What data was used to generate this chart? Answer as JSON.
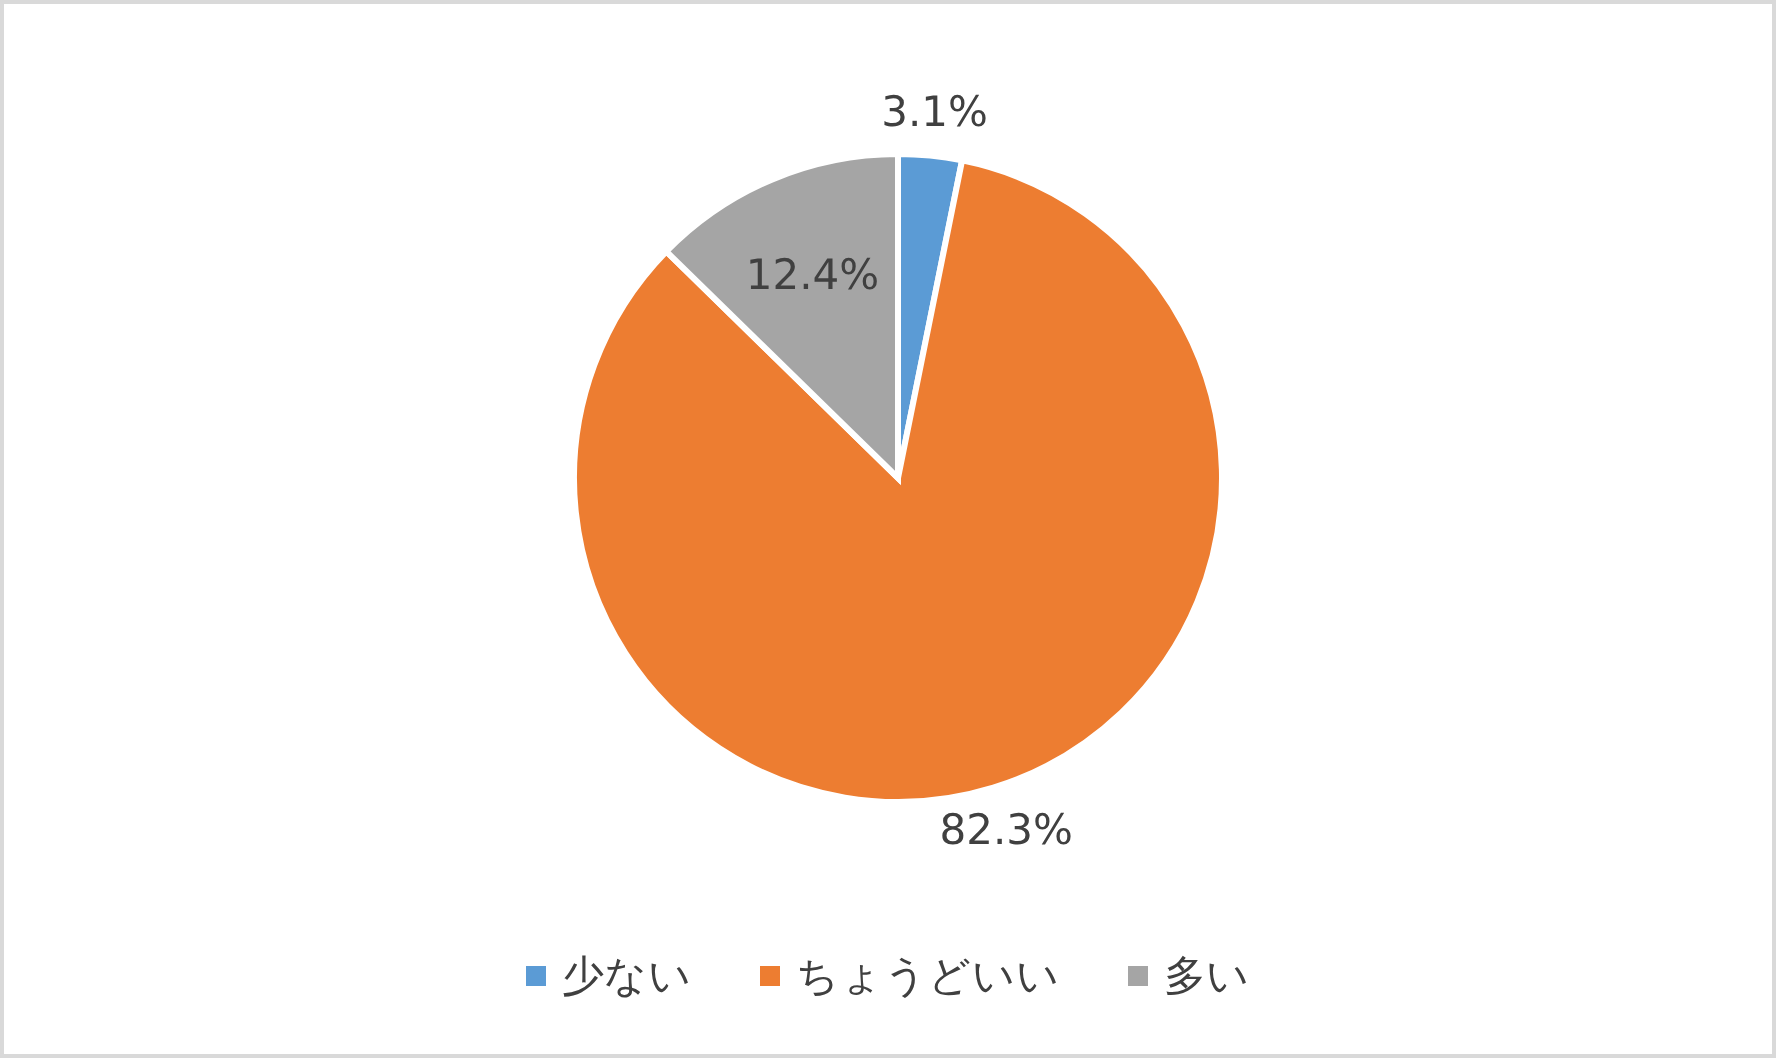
{
  "chart_data": {
    "type": "pie",
    "categories": [
      "少ない",
      "ちょうどいい",
      "多い"
    ],
    "values": [
      3.1,
      82.3,
      12.4
    ],
    "colors": [
      "#5b9bd5",
      "#ed7d31",
      "#a5a5a5"
    ],
    "value_labels": [
      "3.1%",
      "82.3%",
      "12.4%"
    ],
    "legend": "bottom"
  }
}
